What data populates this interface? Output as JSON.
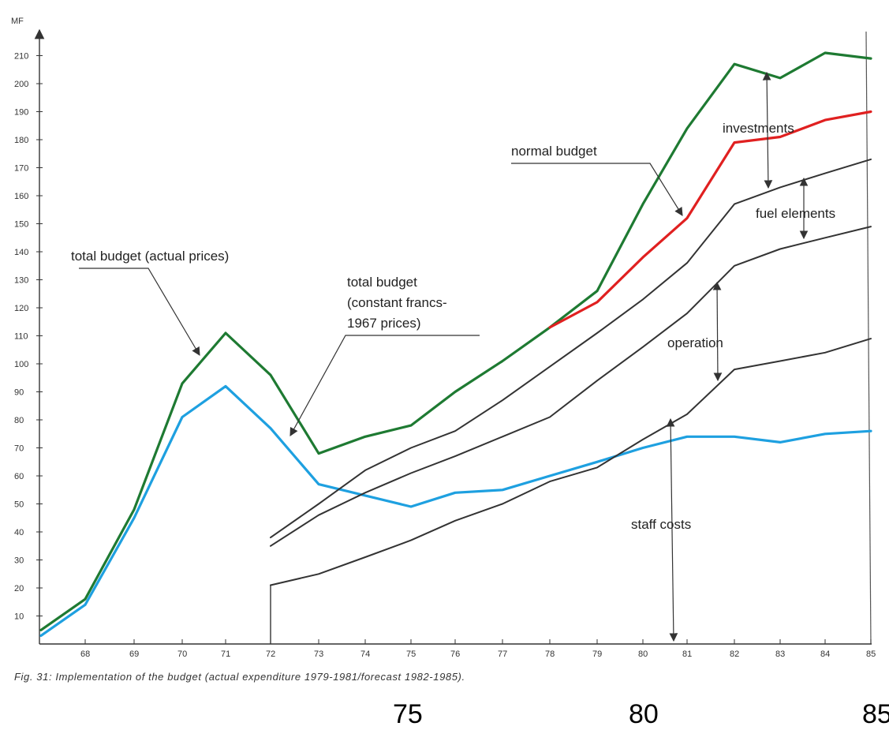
{
  "chart_data": {
    "type": "line",
    "ylabel": "MF",
    "ylim": [
      0,
      215
    ],
    "xlim": [
      67,
      85
    ],
    "y_ticks": [
      10,
      20,
      30,
      40,
      50,
      60,
      70,
      80,
      90,
      100,
      110,
      120,
      130,
      140,
      150,
      160,
      170,
      180,
      190,
      200,
      210
    ],
    "x_tick_labels": [
      "68",
      "69",
      "70",
      "71",
      "72",
      "73",
      "74",
      "75",
      "76",
      "77",
      "78",
      "79",
      "80",
      "81",
      "82",
      "83",
      "84",
      "85"
    ],
    "series": [
      {
        "name": "total budget (actual prices)",
        "color": "#1e7a32",
        "x": [
          67,
          68,
          69,
          70,
          71,
          72,
          73,
          74,
          75,
          76,
          77,
          78,
          79,
          80,
          81,
          82,
          83,
          84,
          85
        ],
        "y": [
          5,
          16,
          48,
          93,
          111,
          96,
          68,
          74,
          78,
          90,
          101,
          113,
          126,
          157,
          184,
          207,
          202,
          211,
          209
        ]
      },
      {
        "name": "total budget (constant francs-1967 prices)",
        "color": "#1ea0e0",
        "x": [
          67,
          68,
          69,
          70,
          71,
          72,
          73,
          74,
          75,
          76,
          77,
          78,
          79,
          80,
          81,
          82,
          83,
          84,
          85
        ],
        "y": [
          3,
          14,
          45,
          81,
          92,
          77,
          57,
          53,
          49,
          54,
          55,
          60,
          65,
          70,
          74,
          74,
          72,
          75,
          76
        ]
      },
      {
        "name": "normal budget",
        "color": "#e02020",
        "x": [
          78,
          79,
          80,
          81,
          82,
          83,
          84,
          85
        ],
        "y": [
          113,
          122,
          138,
          152,
          179,
          181,
          187,
          190
        ]
      },
      {
        "name": "fuel elements",
        "color": "#333333",
        "x": [
          72,
          73,
          74,
          75,
          76,
          77,
          78,
          79,
          80,
          81,
          82,
          83,
          84,
          85
        ],
        "y": [
          38,
          50,
          62,
          70,
          76,
          87,
          99,
          111,
          123,
          136,
          157,
          163,
          168,
          173
        ]
      },
      {
        "name": "operation",
        "color": "#333333",
        "x": [
          72,
          73,
          74,
          75,
          76,
          77,
          78,
          79,
          80,
          81,
          82,
          83,
          84,
          85
        ],
        "y": [
          35,
          46,
          54,
          61,
          67,
          74,
          81,
          94,
          106,
          118,
          135,
          141,
          145,
          149
        ]
      },
      {
        "name": "staff costs",
        "color": "#333333",
        "x": [
          72,
          73,
          74,
          75,
          76,
          77,
          78,
          79,
          80,
          81,
          82,
          83,
          84,
          85
        ],
        "y": [
          21,
          25,
          31,
          37,
          44,
          50,
          58,
          63,
          73,
          82,
          98,
          101,
          104,
          109
        ]
      }
    ],
    "annotations": [
      {
        "text": "total budget (actual prices)"
      },
      {
        "text": "total budget"
      },
      {
        "text": "(constant francs-"
      },
      {
        "text": "1967 prices)"
      },
      {
        "text": "normal budget"
      },
      {
        "text": "investments"
      },
      {
        "text": "fuel elements"
      },
      {
        "text": "operation"
      },
      {
        "text": "staff costs"
      }
    ],
    "caption": "Fig. 31: Implementation of the budget (actual expenditure 1979-1981/forecast 1982-1985).",
    "bottom_labels": [
      "75",
      "80",
      "85"
    ]
  }
}
